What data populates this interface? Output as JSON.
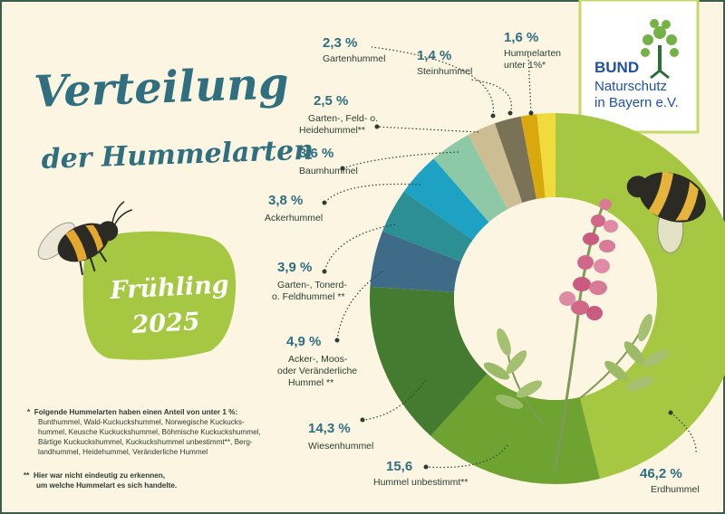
{
  "title": {
    "line1": "Verteilung",
    "line2": "der Hummelarten"
  },
  "season": {
    "line1": "Frühling",
    "line2": "2025"
  },
  "logo": {
    "brand": "BUND",
    "line1": "Naturschutz",
    "line2": "in Bayern e.V."
  },
  "colors": {
    "background": "#fbf5e2",
    "title": "#2f6f80",
    "text": "#2d3d33",
    "accent": "#2f6f80",
    "border": "#3b5d4c",
    "season_blob": "#a6c741"
  },
  "chart_data": {
    "type": "pie",
    "style": "donut",
    "slices": [
      {
        "value": 46.2,
        "value_label": "46,2 %",
        "label": "Erdhummel",
        "color": "#a6c741"
      },
      {
        "value": 15.6,
        "value_label": "15,6",
        "label": "Hummel unbestimmt**",
        "color": "#6ea331"
      },
      {
        "value": 14.3,
        "value_label": "14,3 %",
        "label": "Wiesenhummel",
        "color": "#457b30"
      },
      {
        "value": 4.9,
        "value_label": "4,9 %",
        "label": "Acker-, Moos- oder Veränderliche Hummel **",
        "color": "#3e6c88"
      },
      {
        "value": 3.9,
        "value_label": "3,9 %",
        "label": "Garten-, Tonerd- o. Feldhummel **",
        "color": "#2c8f93"
      },
      {
        "value": 3.8,
        "value_label": "3,8 %",
        "label": "Ackerhummel",
        "color": "#1ea2c3"
      },
      {
        "value": 3.6,
        "value_label": "3,6 %",
        "label": "Baumhummel",
        "color": "#8ec9a7"
      },
      {
        "value": 2.5,
        "value_label": "2,5 %",
        "label": "Garten-, Feld- o. Heidehummel**",
        "color": "#cdbd92"
      },
      {
        "value": 2.3,
        "value_label": "2,3 %",
        "label": "Gartenhummel",
        "color": "#7a7257"
      },
      {
        "value": 1.4,
        "value_label": "1,4 %",
        "label": "Steinhummel",
        "color": "#d8a80c"
      },
      {
        "value": 1.6,
        "value_label": "1,6 %",
        "label": "Hummelarten unter 1%*",
        "color": "#f0da3e"
      }
    ]
  },
  "footnotes": {
    "single_marker": "*",
    "single_intro": "Folgende Hummelarten haben einen Anteil von unter 1 %:",
    "single_lines": [
      "Bunthummel, Wald-Kuckuckshummel, Norwegische Kuckucks-",
      "hummel, Keusche Kuckuckshummel, Böhmische Kuckuckshummel,",
      "Bärtige Kuckuckshummel, Kuckuckshummel unbestimmt**, Berg-",
      "landhummel, Heidehummel, Veränderliche Hummel"
    ],
    "double_marker": "**",
    "double_lines": [
      "Hier war nicht eindeutig zu erkennen,",
      "um welche Hummelart es sich handelte."
    ]
  }
}
